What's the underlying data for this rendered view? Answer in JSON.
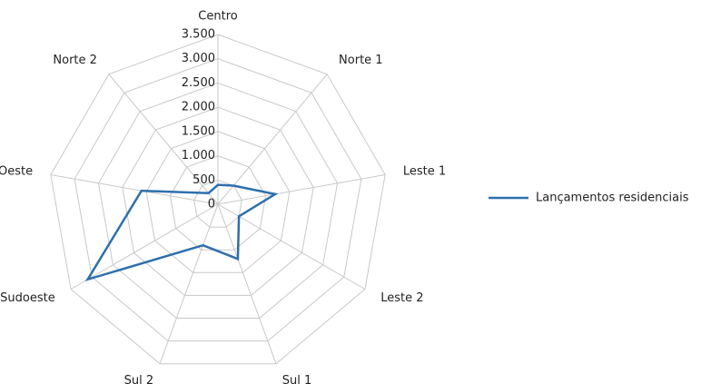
{
  "chart_data": {
    "type": "radar",
    "categories": [
      "Centro",
      "Norte 1",
      "Leste 1",
      "Leste 2",
      "Sul 1",
      "Sul 2",
      "Sudoeste",
      "Oeste",
      "Norte 2"
    ],
    "series": [
      {
        "name": "Lançamentos residenciais",
        "color": "#2e6fad",
        "values": [
          400,
          500,
          1200,
          500,
          1200,
          900,
          3100,
          1600,
          300
        ]
      }
    ],
    "ylim": [
      0,
      3500
    ],
    "yticks": [
      0,
      500,
      {
        "value": 1000,
        "label": "1.000"
      },
      {
        "value": 1500,
        "label": "1.500"
      },
      {
        "value": 2000,
        "label": "2.000"
      },
      {
        "value": 2500,
        "label": "2.500"
      },
      {
        "value": 3000,
        "label": "3.000"
      },
      {
        "value": 3500,
        "label": "3.500"
      }
    ],
    "grid": true,
    "legend": "right"
  }
}
